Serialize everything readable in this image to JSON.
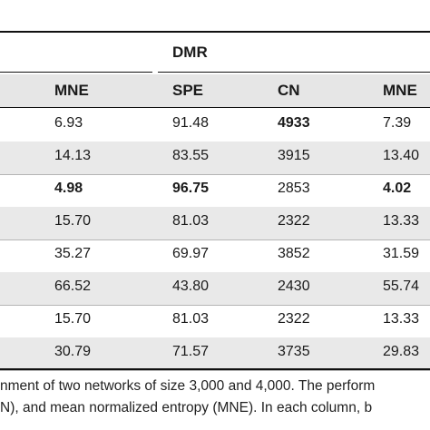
{
  "table": {
    "group_label": "DMR",
    "headers": [
      "MNE",
      "SPE",
      "CN",
      "MNE"
    ],
    "rows": [
      {
        "cells": [
          "6.93",
          "91.48",
          "4933",
          "7.39"
        ],
        "bold": [
          false,
          false,
          true,
          false
        ]
      },
      {
        "cells": [
          "14.13",
          "83.55",
          "3915",
          "13.40"
        ],
        "bold": [
          false,
          false,
          false,
          false
        ]
      },
      {
        "cells": [
          "4.98",
          "96.75",
          "2853",
          "4.02"
        ],
        "bold": [
          true,
          true,
          false,
          true
        ]
      },
      {
        "cells": [
          "15.70",
          "81.03",
          "2322",
          "13.33"
        ],
        "bold": [
          false,
          false,
          false,
          false
        ]
      },
      {
        "cells": [
          "35.27",
          "69.97",
          "3852",
          "31.59"
        ],
        "bold": [
          false,
          false,
          false,
          false
        ]
      },
      {
        "cells": [
          "66.52",
          "43.80",
          "2430",
          "55.74"
        ],
        "bold": [
          false,
          false,
          false,
          false
        ]
      },
      {
        "cells": [
          "15.70",
          "81.03",
          "2322",
          "13.33"
        ],
        "bold": [
          false,
          false,
          false,
          false
        ]
      },
      {
        "cells": [
          "30.79",
          "71.57",
          "3735",
          "29.83"
        ],
        "bold": [
          false,
          false,
          false,
          false
        ]
      }
    ]
  },
  "caption": {
    "line1": "nment of two networks of size 3,000 and 4,000. The perform",
    "line2": "N), and mean normalized entropy (MNE). In each column, b"
  }
}
